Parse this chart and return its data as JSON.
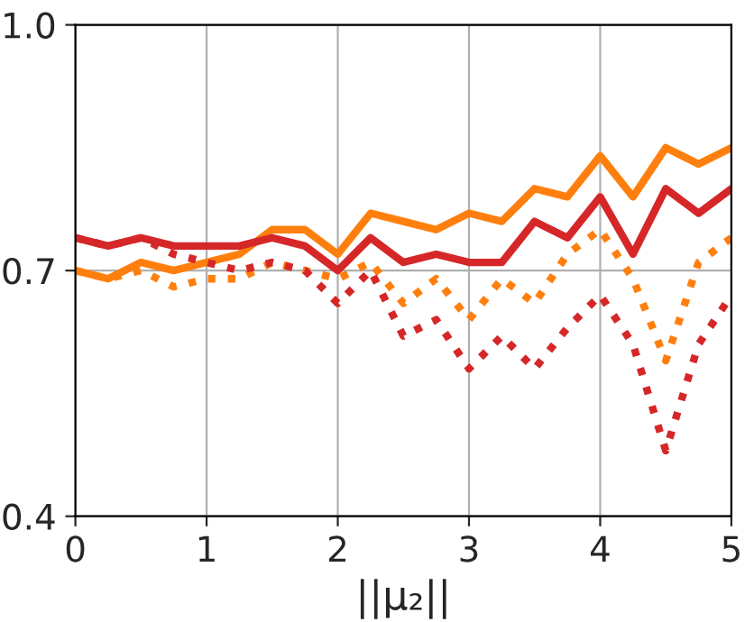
{
  "chart_data": {
    "type": "line",
    "xlabel": "||μ₂||",
    "x": [
      0,
      0.25,
      0.5,
      0.75,
      1,
      1.25,
      1.5,
      1.75,
      2,
      2.25,
      2.5,
      2.75,
      3,
      3.25,
      3.5,
      3.75,
      4,
      4.25,
      4.5,
      4.75,
      5
    ],
    "series": [
      {
        "color": "#ff7f0e",
        "line_style": "solid",
        "values": [
          0.7,
          0.69,
          0.71,
          0.7,
          0.71,
          0.72,
          0.75,
          0.75,
          0.72,
          0.77,
          0.76,
          0.75,
          0.77,
          0.76,
          0.8,
          0.79,
          0.84,
          0.79,
          0.85,
          0.83,
          0.85
        ]
      },
      {
        "color": "#d62728",
        "line_style": "solid",
        "values": [
          0.74,
          0.73,
          0.74,
          0.73,
          0.73,
          0.73,
          0.74,
          0.73,
          0.7,
          0.74,
          0.71,
          0.72,
          0.71,
          0.71,
          0.76,
          0.74,
          0.79,
          0.72,
          0.8,
          0.77,
          0.8
        ]
      },
      {
        "color": "#ff7f0e",
        "line_style": "dotted",
        "values": [
          0.7,
          0.69,
          0.7,
          0.68,
          0.69,
          0.69,
          0.71,
          0.7,
          0.69,
          0.71,
          0.66,
          0.69,
          0.64,
          0.69,
          0.66,
          0.72,
          0.75,
          0.69,
          0.59,
          0.71,
          0.74
        ]
      },
      {
        "color": "#d62728",
        "line_style": "dotted",
        "values": [
          0.74,
          0.73,
          0.74,
          0.72,
          0.71,
          0.7,
          0.71,
          0.7,
          0.66,
          0.7,
          0.62,
          0.64,
          0.58,
          0.62,
          0.58,
          0.63,
          0.67,
          0.61,
          0.48,
          0.61,
          0.67
        ]
      }
    ],
    "xlim": [
      0,
      5
    ],
    "xticks": [
      0,
      1,
      2,
      3,
      4,
      5
    ],
    "ylim": [
      0.4,
      1.0
    ],
    "yticks": [
      0.4,
      0.7,
      {
        "value": 1,
        "label": "1.0"
      }
    ],
    "grid": true,
    "marker": "none"
  }
}
